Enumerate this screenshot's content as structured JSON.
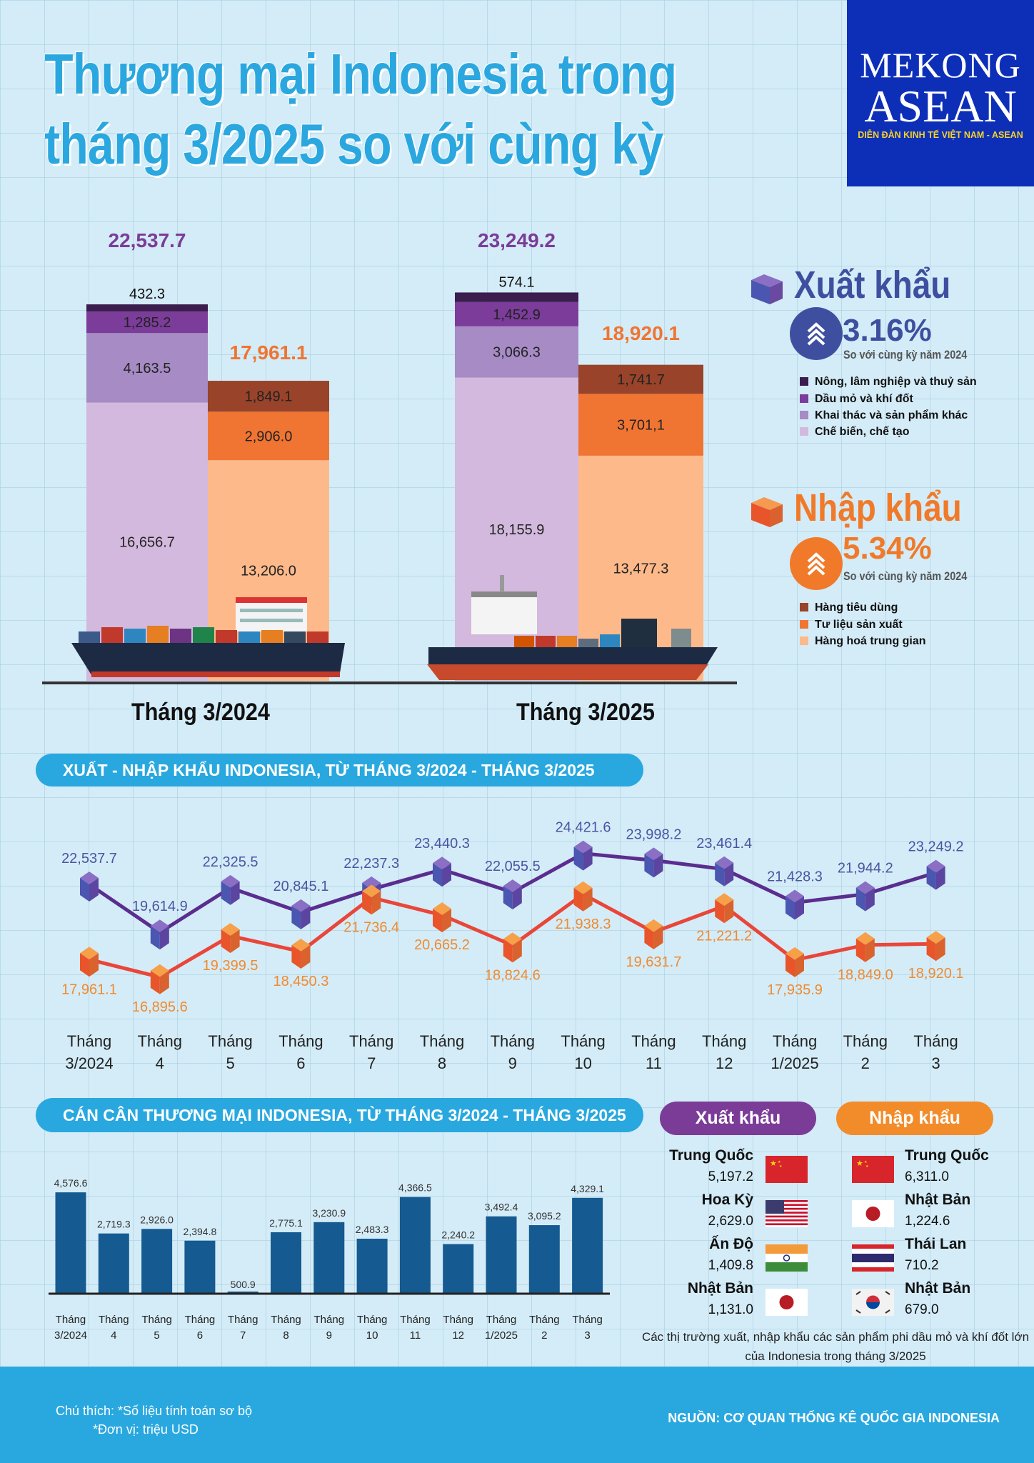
{
  "title": {
    "line1": "Thương mại Indonesia trong",
    "line2": "tháng 3/2025 so với cùng kỳ"
  },
  "logo": {
    "line1": "MEKONG",
    "line2": "ASEAN",
    "tagline": "DIỄN ĐÀN KINH TẾ VIỆT NAM - ASEAN"
  },
  "colors": {
    "export_line": "#5a2d8f",
    "import_line": "#e9463a",
    "export_label": "#4a55a2",
    "import_label": "#f08a30",
    "balance_bar": "#155a90",
    "pill": "#29a8e0",
    "export_pill": "#7b3c98",
    "import_pill": "#f28c2b"
  },
  "summary": {
    "export": {
      "title": "Xuất khẩu",
      "change": "3.16%",
      "direction": "up",
      "note": "So với cùng kỳ năm 2024",
      "color": "#3f4fa0"
    },
    "import": {
      "title": "Nhập khẩu",
      "change": "5.34%",
      "direction": "up",
      "note": "So với cùng kỳ năm 2024",
      "color": "#f07a2a"
    }
  },
  "chart_data": [
    {
      "type": "bar",
      "stacked": true,
      "categories": [
        "Tháng 3/2024",
        "Tháng 3/2025"
      ],
      "groups": [
        {
          "name": "Xuất khẩu",
          "totals": [
            22537.7,
            23249.2
          ],
          "total_labels": [
            "22,537.7",
            "23,249.2"
          ],
          "total_color": "#7b3c98",
          "series": [
            {
              "name": "Chế biến, chế tạo",
              "values": [
                16656.7,
                18155.9
              ],
              "labels": [
                "16,656.7",
                "18,155.9"
              ],
              "color": "#d3b9dd"
            },
            {
              "name": "Khai thác và sản phẩm khác",
              "values": [
                4163.5,
                3066.3
              ],
              "labels": [
                "4,163.5",
                "3,066.3"
              ],
              "color": "#a68bc4"
            },
            {
              "name": "Dầu mỏ và khí đốt",
              "values": [
                1285.2,
                1452.9
              ],
              "labels": [
                "1,285.2",
                "1,452.9"
              ],
              "color": "#7b3c9a"
            },
            {
              "name": "Nông, lâm nghiệp và thuỷ sản",
              "values": [
                432.3,
                574.1
              ],
              "labels": [
                "432.3",
                "574.1"
              ],
              "color": "#3b1d4e"
            }
          ]
        },
        {
          "name": "Nhập khẩu",
          "totals": [
            17961.1,
            18920.1
          ],
          "total_labels": [
            "17,961.1",
            "18,920.1"
          ],
          "total_color": "#f07532",
          "series": [
            {
              "name": "Hàng hoá trung gian",
              "values": [
                13206.0,
                13477.3
              ],
              "labels": [
                "13,206.0",
                "13,477.3"
              ],
              "color": "#fdb98a"
            },
            {
              "name": "Tư liệu sản xuất",
              "values": [
                2906.0,
                3701.1
              ],
              "labels": [
                "2,906.0",
                "3,701,1"
              ],
              "color": "#f07532"
            },
            {
              "name": "Hàng tiêu dùng",
              "values": [
                1849.1,
                1741.7
              ],
              "labels": [
                "1,849.1",
                "1,741.7"
              ],
              "color": "#98432a"
            }
          ]
        }
      ],
      "legend_placement": "right",
      "unit": "triệu USD"
    },
    {
      "type": "line",
      "title": "XUẤT - NHẬP KHẨU INDONESIA, TỪ THÁNG 3/2024 - THÁNG 3/2025",
      "categories": [
        "Tháng 3/2024",
        "Tháng 4",
        "Tháng 5",
        "Tháng 6",
        "Tháng 7",
        "Tháng 8",
        "Tháng 9",
        "Tháng 10",
        "Tháng 11",
        "Tháng 12",
        "Tháng 1/2025",
        "Tháng 2",
        "Tháng 3"
      ],
      "series": [
        {
          "name": "Xuất khẩu",
          "values": [
            22537.7,
            19614.9,
            22325.5,
            20845.1,
            22237.3,
            23440.3,
            22055.5,
            24421.6,
            23998.2,
            23461.4,
            21428.3,
            21944.2,
            23249.2
          ],
          "labels": [
            "22,537.7",
            "19,614.9",
            "22,325.5",
            "20,845.1",
            "22,237.3",
            "23,440.3",
            "22,055.5",
            "24,421.6",
            "23,998.2",
            "23,461.4",
            "21,428.3",
            "21,944.2",
            "23,249.2"
          ]
        },
        {
          "name": "Nhập khẩu",
          "values": [
            17961.1,
            16895.6,
            19399.5,
            18450.3,
            21736.4,
            20665.2,
            18824.6,
            21938.3,
            19631.7,
            21221.2,
            17935.9,
            18849.0,
            18920.1
          ],
          "labels": [
            "17,961.1",
            "16,895.6",
            "19,399.5",
            "18,450.3",
            "21,736.4",
            "20,665.2",
            "18,824.6",
            "21,938.3",
            "19,631.7",
            "21,221.2",
            "17,935.9",
            "18,849.0",
            "18,920.1"
          ]
        }
      ],
      "grid": false
    },
    {
      "type": "bar",
      "title": "CÁN CÂN THƯƠNG MẠI INDONESIA, TỪ THÁNG 3/2024 - THÁNG 3/2025",
      "categories": [
        "Tháng 3/2024",
        "Tháng 4",
        "Tháng 5",
        "Tháng 6",
        "Tháng 7",
        "Tháng 8",
        "Tháng 9",
        "Tháng 10",
        "Tháng 11",
        "Tháng 12",
        "Tháng 1/2025",
        "Tháng 2",
        "Tháng 3"
      ],
      "values": [
        4576.6,
        2719.3,
        2926.0,
        2394.8,
        500.9,
        2775.1,
        3230.9,
        2483.3,
        4366.5,
        2240.2,
        3492.4,
        3095.2,
        4329.1
      ],
      "labels": [
        "4,576.6",
        "2,719.3",
        "2,926.0",
        "2,394.8",
        "500.9",
        "2,775.1",
        "3,230.9",
        "2,483.3",
        "4,366.5",
        "2,240.2",
        "3,492.4",
        "3,095.2",
        "4,329.1"
      ]
    }
  ],
  "markets": {
    "export": {
      "title": "Xuất khẩu",
      "items": [
        {
          "country": "Trung Quốc",
          "value": "5,197.2",
          "flag": "china"
        },
        {
          "country": "Hoa Kỳ",
          "value": "2,629.0",
          "flag": "usa"
        },
        {
          "country": "Ấn Độ",
          "value": "1,409.8",
          "flag": "india"
        },
        {
          "country": "Nhật Bản",
          "value": "1,131.0",
          "flag": "japan"
        }
      ]
    },
    "import": {
      "title": "Nhập khẩu",
      "items": [
        {
          "country": "Trung Quốc",
          "value": "6,311.0",
          "flag": "china"
        },
        {
          "country": "Nhật Bản",
          "value": "1,224.6",
          "flag": "japan"
        },
        {
          "country": "Thái Lan",
          "value": "710.2",
          "flag": "thailand"
        },
        {
          "country": "Nhật Bản",
          "value": "679.0",
          "flag": "south-korea"
        }
      ]
    },
    "caption": "Các thị trường xuất, nhập khẩu các sản phẩm phi dầu mỏ và khí đốt lớn của Indonesia trong tháng 3/2025"
  },
  "footer": {
    "note1": "Chú thích: *Số liệu tính toán sơ bộ",
    "note2": "*Đơn vị: triệu USD",
    "source": "NGUỒN: CƠ QUAN THỐNG KÊ QUỐC GIA INDONESIA"
  }
}
